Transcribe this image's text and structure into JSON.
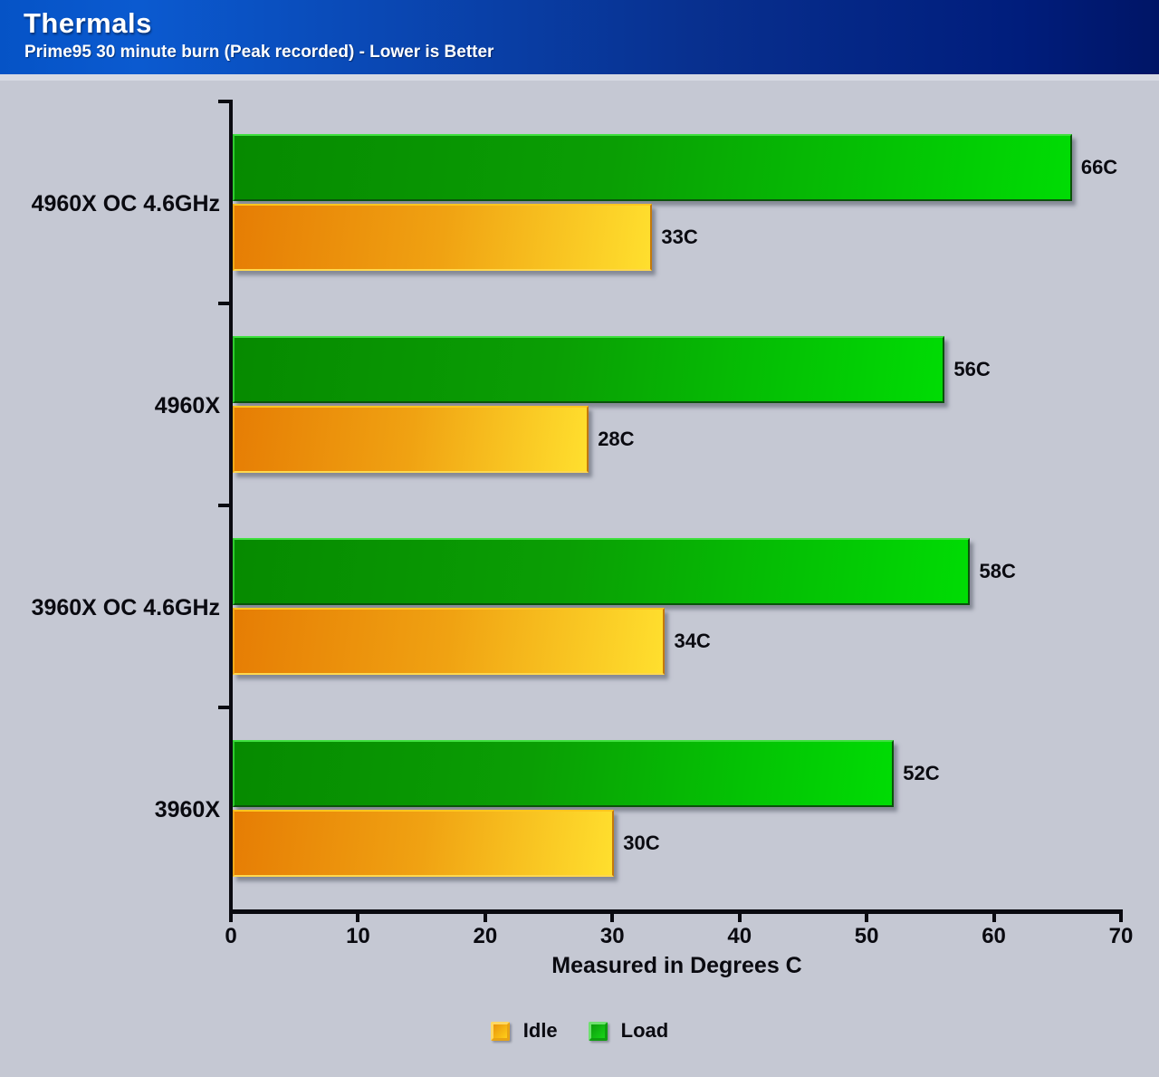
{
  "header": {
    "title": "Thermals",
    "subtitle": "Prime95 30 minute burn (Peak recorded) - Lower is Better"
  },
  "chart_data": {
    "type": "bar",
    "orientation": "horizontal",
    "title": "Thermals",
    "subtitle": "Prime95 30 minute burn (Peak recorded) - Lower is Better",
    "categories": [
      "4960X OC 4.6GHz",
      "4960X",
      "3960X OC 4.6GHz",
      "3960X"
    ],
    "series": [
      {
        "name": "Load",
        "values": [
          66,
          56,
          58,
          52
        ],
        "labels": [
          "66C",
          "56C",
          "58C",
          "52C"
        ],
        "color": "#00b400"
      },
      {
        "name": "Idle",
        "values": [
          33,
          28,
          34,
          30
        ],
        "labels": [
          "33C",
          "28C",
          "34C",
          "30C"
        ],
        "color": "#f5a623"
      }
    ],
    "xlabel": "Measured in Degrees C",
    "xlim": [
      0,
      70
    ],
    "xticks": [
      0,
      10,
      20,
      30,
      40,
      50,
      60,
      70
    ],
    "grid": false,
    "legend_position": "bottom",
    "legend": [
      {
        "label": "Idle",
        "swatch": "idle"
      },
      {
        "label": "Load",
        "swatch": "load"
      }
    ],
    "value_suffix": "C"
  },
  "colors": {
    "header_blue_left": "#0553c6",
    "header_blue_right": "#001566",
    "page_background": "#c5c8d3",
    "load_gradient_start": "#068a00",
    "load_gradient_end": "#00dc04",
    "idle_gradient_start": "#e67d04",
    "idle_gradient_end": "#ffdf2e",
    "axis_black": "#0a0a10"
  }
}
